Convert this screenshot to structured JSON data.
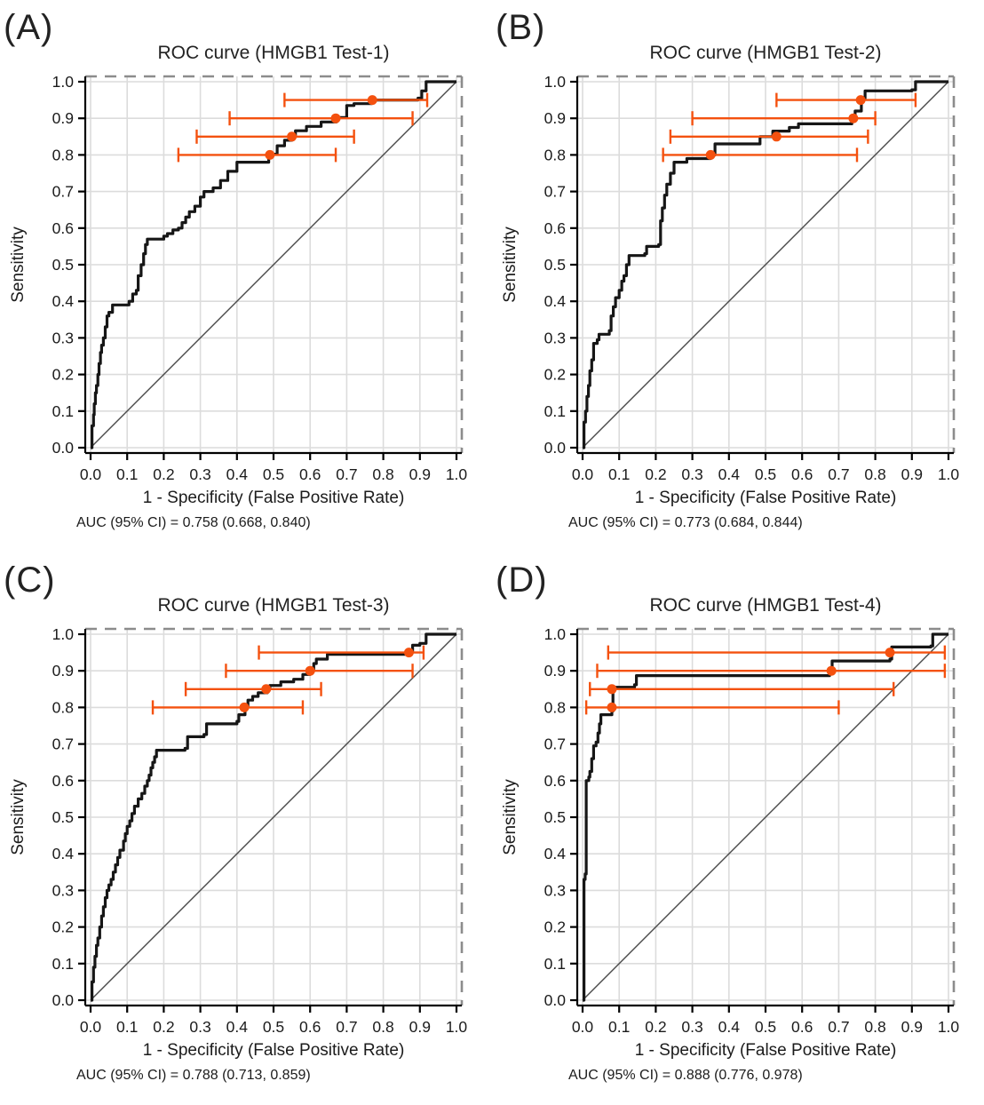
{
  "figure": {
    "x_axis_label": "1 - Specificity (False Positive Rate)",
    "y_axis_label": "Sensitivity",
    "x_ticks": [
      "0.0",
      "0.1",
      "0.2",
      "0.3",
      "0.4",
      "0.5",
      "0.6",
      "0.7",
      "0.8",
      "0.9",
      "1.0"
    ],
    "y_ticks": [
      "0.0",
      "0.1",
      "0.2",
      "0.3",
      "0.4",
      "0.5",
      "0.6",
      "0.7",
      "0.8",
      "0.9",
      "1.0"
    ],
    "colors": {
      "curve": "#161616",
      "diagonal": "#4a4a4a",
      "ci": "#f4510f",
      "grid": "#dcdcdc",
      "border_dashed": "#8c8c8c",
      "axis": "#000000",
      "background": "#ffffff"
    }
  },
  "chart_data": [
    {
      "panel_label": "(A)",
      "type": "line",
      "title": "ROC curve (HMGB1 Test-1)",
      "xlabel": "1 - Specificity (False Positive Rate)",
      "ylabel": "Sensitivity",
      "xlim": [
        0,
        1
      ],
      "ylim": [
        0,
        1
      ],
      "grid": true,
      "diagonal_reference": true,
      "auc": 0.758,
      "auc_ci": [
        0.668,
        0.84
      ],
      "auc_label": "AUC (95% CI) = 0.758 (0.668, 0.840)",
      "roc_points": [
        [
          0,
          0
        ],
        [
          0.004,
          0.06
        ],
        [
          0.008,
          0.09
        ],
        [
          0.01,
          0.12
        ],
        [
          0.013,
          0.15
        ],
        [
          0.016,
          0.17
        ],
        [
          0.02,
          0.2
        ],
        [
          0.023,
          0.23
        ],
        [
          0.027,
          0.26
        ],
        [
          0.03,
          0.28
        ],
        [
          0.035,
          0.3
        ],
        [
          0.04,
          0.33
        ],
        [
          0.045,
          0.36
        ],
        [
          0.05,
          0.37
        ],
        [
          0.06,
          0.39
        ],
        [
          0.105,
          0.4
        ],
        [
          0.115,
          0.42
        ],
        [
          0.125,
          0.43
        ],
        [
          0.13,
          0.47
        ],
        [
          0.138,
          0.5
        ],
        [
          0.145,
          0.53
        ],
        [
          0.15,
          0.555
        ],
        [
          0.155,
          0.57
        ],
        [
          0.2,
          0.578
        ],
        [
          0.21,
          0.585
        ],
        [
          0.225,
          0.595
        ],
        [
          0.24,
          0.6
        ],
        [
          0.25,
          0.615
        ],
        [
          0.26,
          0.63
        ],
        [
          0.27,
          0.645
        ],
        [
          0.285,
          0.66
        ],
        [
          0.3,
          0.685
        ],
        [
          0.31,
          0.7
        ],
        [
          0.335,
          0.71
        ],
        [
          0.355,
          0.73
        ],
        [
          0.375,
          0.755
        ],
        [
          0.4,
          0.78
        ],
        [
          0.487,
          0.802
        ],
        [
          0.51,
          0.825
        ],
        [
          0.53,
          0.84
        ],
        [
          0.55,
          0.85
        ],
        [
          0.56,
          0.866
        ],
        [
          0.59,
          0.878
        ],
        [
          0.63,
          0.89
        ],
        [
          0.672,
          0.902
        ],
        [
          0.7,
          0.935
        ],
        [
          0.72,
          0.94
        ],
        [
          0.768,
          0.95
        ],
        [
          0.895,
          0.955
        ],
        [
          0.905,
          0.975
        ],
        [
          0.917,
          1
        ],
        [
          1,
          1
        ]
      ],
      "ci_markers": [
        {
          "sensitivity": 0.95,
          "fpr": 0.77,
          "ci_low": 0.53,
          "ci_high": 0.92
        },
        {
          "sensitivity": 0.9,
          "fpr": 0.67,
          "ci_low": 0.38,
          "ci_high": 0.88
        },
        {
          "sensitivity": 0.85,
          "fpr": 0.55,
          "ci_low": 0.29,
          "ci_high": 0.72
        },
        {
          "sensitivity": 0.8,
          "fpr": 0.49,
          "ci_low": 0.24,
          "ci_high": 0.67
        }
      ]
    },
    {
      "panel_label": "(B)",
      "type": "line",
      "title": "ROC curve (HMGB1 Test-2)",
      "xlabel": "1 - Specificity (False Positive Rate)",
      "ylabel": "Sensitivity",
      "xlim": [
        0,
        1
      ],
      "ylim": [
        0,
        1
      ],
      "grid": true,
      "diagonal_reference": true,
      "auc": 0.773,
      "auc_ci": [
        0.684,
        0.844
      ],
      "auc_label": "AUC (95% CI) = 0.773 (0.684, 0.844)",
      "roc_points": [
        [
          0,
          0
        ],
        [
          0.004,
          0.07
        ],
        [
          0.008,
          0.1
        ],
        [
          0.012,
          0.14
        ],
        [
          0.016,
          0.17
        ],
        [
          0.02,
          0.21
        ],
        [
          0.025,
          0.24
        ],
        [
          0.03,
          0.285
        ],
        [
          0.04,
          0.295
        ],
        [
          0.045,
          0.31
        ],
        [
          0.073,
          0.32
        ],
        [
          0.078,
          0.36
        ],
        [
          0.084,
          0.385
        ],
        [
          0.09,
          0.41
        ],
        [
          0.1,
          0.43
        ],
        [
          0.107,
          0.455
        ],
        [
          0.113,
          0.47
        ],
        [
          0.12,
          0.5
        ],
        [
          0.127,
          0.525
        ],
        [
          0.17,
          0.53
        ],
        [
          0.175,
          0.55
        ],
        [
          0.208,
          0.555
        ],
        [
          0.213,
          0.62
        ],
        [
          0.218,
          0.655
        ],
        [
          0.224,
          0.69
        ],
        [
          0.23,
          0.72
        ],
        [
          0.24,
          0.75
        ],
        [
          0.25,
          0.78
        ],
        [
          0.285,
          0.79
        ],
        [
          0.35,
          0.8
        ],
        [
          0.362,
          0.83
        ],
        [
          0.485,
          0.85
        ],
        [
          0.52,
          0.865
        ],
        [
          0.565,
          0.875
        ],
        [
          0.59,
          0.885
        ],
        [
          0.736,
          0.905
        ],
        [
          0.745,
          0.92
        ],
        [
          0.762,
          0.955
        ],
        [
          0.772,
          0.975
        ],
        [
          0.9,
          0.978
        ],
        [
          0.91,
          1
        ],
        [
          1,
          1
        ]
      ],
      "ci_markers": [
        {
          "sensitivity": 0.95,
          "fpr": 0.76,
          "ci_low": 0.53,
          "ci_high": 0.91
        },
        {
          "sensitivity": 0.9,
          "fpr": 0.74,
          "ci_low": 0.3,
          "ci_high": 0.8
        },
        {
          "sensitivity": 0.85,
          "fpr": 0.53,
          "ci_low": 0.24,
          "ci_high": 0.78
        },
        {
          "sensitivity": 0.8,
          "fpr": 0.35,
          "ci_low": 0.22,
          "ci_high": 0.75
        }
      ]
    },
    {
      "panel_label": "(C)",
      "type": "line",
      "title": "ROC curve (HMGB1 Test-3)",
      "xlabel": "1 - Specificity (False Positive Rate)",
      "ylabel": "Sensitivity",
      "xlim": [
        0,
        1
      ],
      "ylim": [
        0,
        1
      ],
      "grid": true,
      "diagonal_reference": true,
      "auc": 0.788,
      "auc_ci": [
        0.713,
        0.859
      ],
      "auc_label": "AUC (95% CI) = 0.788 (0.713, 0.859)",
      "roc_points": [
        [
          0,
          0
        ],
        [
          0.004,
          0.05
        ],
        [
          0.008,
          0.09
        ],
        [
          0.012,
          0.12
        ],
        [
          0.016,
          0.15
        ],
        [
          0.02,
          0.17
        ],
        [
          0.025,
          0.2
        ],
        [
          0.03,
          0.23
        ],
        [
          0.035,
          0.255
        ],
        [
          0.04,
          0.28
        ],
        [
          0.045,
          0.3
        ],
        [
          0.05,
          0.315
        ],
        [
          0.056,
          0.33
        ],
        [
          0.062,
          0.35
        ],
        [
          0.068,
          0.37
        ],
        [
          0.074,
          0.39
        ],
        [
          0.08,
          0.41
        ],
        [
          0.09,
          0.435
        ],
        [
          0.095,
          0.455
        ],
        [
          0.1,
          0.475
        ],
        [
          0.107,
          0.49
        ],
        [
          0.113,
          0.51
        ],
        [
          0.12,
          0.53
        ],
        [
          0.13,
          0.55
        ],
        [
          0.14,
          0.565
        ],
        [
          0.148,
          0.585
        ],
        [
          0.155,
          0.6
        ],
        [
          0.16,
          0.615
        ],
        [
          0.165,
          0.635
        ],
        [
          0.17,
          0.65
        ],
        [
          0.175,
          0.665
        ],
        [
          0.18,
          0.683
        ],
        [
          0.258,
          0.688
        ],
        [
          0.265,
          0.72
        ],
        [
          0.31,
          0.726
        ],
        [
          0.317,
          0.755
        ],
        [
          0.4,
          0.762
        ],
        [
          0.405,
          0.78
        ],
        [
          0.422,
          0.802
        ],
        [
          0.43,
          0.82
        ],
        [
          0.443,
          0.83
        ],
        [
          0.458,
          0.84
        ],
        [
          0.483,
          0.852
        ],
        [
          0.49,
          0.86
        ],
        [
          0.52,
          0.87
        ],
        [
          0.555,
          0.877
        ],
        [
          0.58,
          0.89
        ],
        [
          0.6,
          0.902
        ],
        [
          0.61,
          0.92
        ],
        [
          0.617,
          0.932
        ],
        [
          0.647,
          0.945
        ],
        [
          0.87,
          0.952
        ],
        [
          0.88,
          0.97
        ],
        [
          0.9,
          0.975
        ],
        [
          0.917,
          1
        ],
        [
          1,
          1
        ]
      ],
      "ci_markers": [
        {
          "sensitivity": 0.95,
          "fpr": 0.87,
          "ci_low": 0.46,
          "ci_high": 0.91
        },
        {
          "sensitivity": 0.9,
          "fpr": 0.6,
          "ci_low": 0.37,
          "ci_high": 0.88
        },
        {
          "sensitivity": 0.85,
          "fpr": 0.48,
          "ci_low": 0.26,
          "ci_high": 0.63
        },
        {
          "sensitivity": 0.8,
          "fpr": 0.42,
          "ci_low": 0.17,
          "ci_high": 0.58
        }
      ]
    },
    {
      "panel_label": "(D)",
      "type": "line",
      "title": "ROC curve (HMGB1 Test-4)",
      "xlabel": "1 - Specificity (False Positive Rate)",
      "ylabel": "Sensitivity",
      "xlim": [
        0,
        1
      ],
      "ylim": [
        0,
        1
      ],
      "grid": true,
      "diagonal_reference": true,
      "auc": 0.888,
      "auc_ci": [
        0.776,
        0.978
      ],
      "auc_label": "AUC (95% CI) = 0.888 (0.776, 0.978)",
      "roc_points": [
        [
          0,
          0
        ],
        [
          0.004,
          0.33
        ],
        [
          0.007,
          0.345
        ],
        [
          0.01,
          0.6
        ],
        [
          0.017,
          0.61
        ],
        [
          0.02,
          0.625
        ],
        [
          0.025,
          0.66
        ],
        [
          0.03,
          0.695
        ],
        [
          0.037,
          0.705
        ],
        [
          0.042,
          0.73
        ],
        [
          0.046,
          0.755
        ],
        [
          0.05,
          0.78
        ],
        [
          0.08,
          0.79
        ],
        [
          0.083,
          0.855
        ],
        [
          0.142,
          0.862
        ],
        [
          0.147,
          0.887
        ],
        [
          0.675,
          0.892
        ],
        [
          0.682,
          0.927
        ],
        [
          0.84,
          0.932
        ],
        [
          0.845,
          0.965
        ],
        [
          0.952,
          0.968
        ],
        [
          0.957,
          1
        ],
        [
          1,
          1
        ]
      ],
      "ci_markers": [
        {
          "sensitivity": 0.95,
          "fpr": 0.84,
          "ci_low": 0.07,
          "ci_high": 0.99
        },
        {
          "sensitivity": 0.9,
          "fpr": 0.68,
          "ci_low": 0.04,
          "ci_high": 0.99
        },
        {
          "sensitivity": 0.85,
          "fpr": 0.08,
          "ci_low": 0.02,
          "ci_high": 0.85
        },
        {
          "sensitivity": 0.8,
          "fpr": 0.08,
          "ci_low": 0.01,
          "ci_high": 0.7
        }
      ]
    }
  ]
}
